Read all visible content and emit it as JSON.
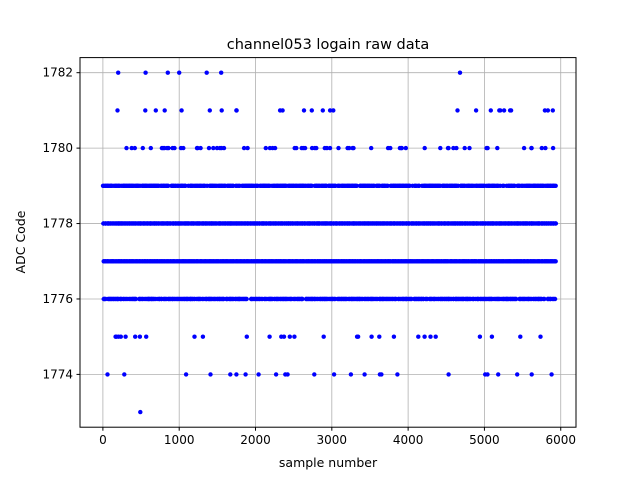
{
  "chart_data": {
    "type": "scatter",
    "title": "channel053 logain raw data",
    "xlabel": "sample number",
    "ylabel": "ADC Code",
    "xlim": [
      -300,
      6200
    ],
    "ylim": [
      1772.6,
      1782.4
    ],
    "xticks": [
      0,
      1000,
      2000,
      3000,
      4000,
      5000,
      6000
    ],
    "yticks": [
      1774,
      1776,
      1778,
      1780,
      1782
    ],
    "grid": true,
    "marker_color": "#0000ff",
    "n_samples": 5930,
    "dense_levels": [
      1776,
      1777,
      1778,
      1779
    ],
    "level_density": {
      "1775": 0.05,
      "1776": 0.85,
      "1777": 1.0,
      "1778": 1.0,
      "1779": 0.85,
      "1780": 0.14,
      "1781": 0.05
    },
    "sparse_points": {
      "1782": [
        200,
        560,
        850,
        1000,
        1360,
        1550,
        4680
      ],
      "1774": [
        60,
        280,
        1090,
        1410,
        1670,
        1750,
        1870,
        2040,
        2270,
        2390,
        2420,
        2770,
        3030,
        3250,
        3430,
        3630,
        3650,
        3860,
        4530,
        5010,
        5040,
        5180,
        5430,
        5620,
        5880
      ],
      "1773": [
        490
      ]
    }
  }
}
